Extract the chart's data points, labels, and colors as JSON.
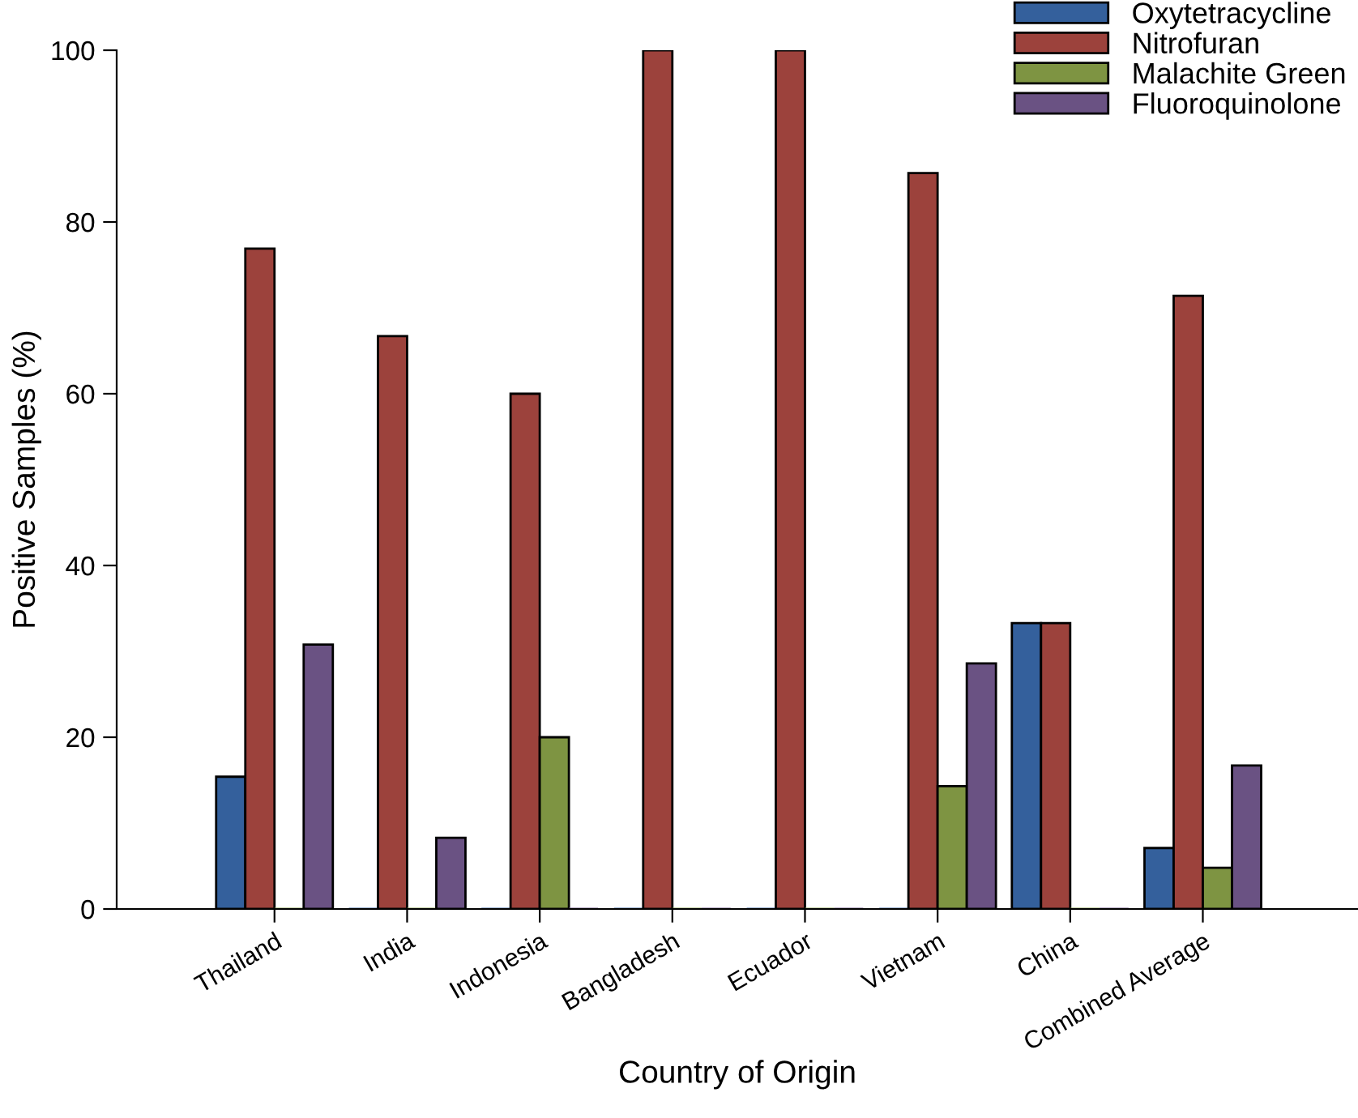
{
  "chart_data": {
    "type": "bar",
    "xlabel": "Country of Origin",
    "ylabel": "Positive Samples (%)",
    "categories": [
      "Thailand",
      "India",
      "Indonesia",
      "Bangladesh",
      "Ecuador",
      "Vietnam",
      "China",
      "Combined Average"
    ],
    "series": [
      {
        "name": "Oxytetracycline",
        "color": "#34609c",
        "values": [
          15.4,
          0,
          0,
          0,
          0,
          0,
          33.3,
          7.1
        ]
      },
      {
        "name": "Nitrofuran",
        "color": "#9c423c",
        "values": [
          76.9,
          66.7,
          60,
          100,
          100,
          85.7,
          33.3,
          71.4
        ]
      },
      {
        "name": "Malachite Green",
        "color": "#7e9442",
        "values": [
          0,
          0,
          20,
          0,
          0,
          14.3,
          0,
          4.8
        ]
      },
      {
        "name": "Fluoroquinolone",
        "color": "#6a5283",
        "values": [
          30.8,
          8.3,
          0,
          0,
          0,
          28.6,
          0,
          16.7
        ]
      }
    ],
    "ylim": [
      0,
      100
    ],
    "yticks": [
      0,
      20,
      40,
      60,
      80,
      100
    ],
    "grid": false,
    "legend": "top right"
  }
}
